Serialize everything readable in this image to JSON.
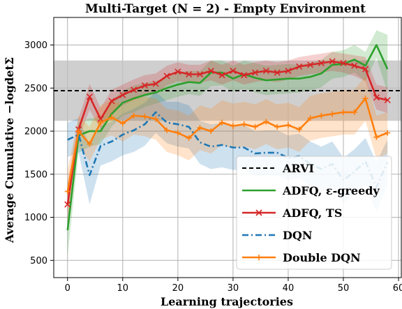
{
  "chart_data": {
    "type": "line",
    "title": "Multi-Target (N = 2) - Empty Environment",
    "xlabel": "Learning trajectories",
    "ylabel": "Average Cumulative −logdetΣ",
    "xlim": [
      -2.5,
      60.5
    ],
    "ylim": [
      300,
      3320
    ],
    "xticks": [
      "0",
      "10",
      "20",
      "30",
      "40",
      "50",
      "60"
    ],
    "yticks": [
      "500",
      "1000",
      "1500",
      "2000",
      "2500",
      "3000"
    ],
    "grid": true,
    "legend_position": "lower-right",
    "reference": {
      "name": "ARVI",
      "value": 2470,
      "band": [
        2120,
        2820
      ],
      "color": "#000000",
      "band_color": "#bfbfbf"
    },
    "series": [
      {
        "name": "ADFQ, ε-greedy",
        "color": "#2ca02c",
        "style": "solid",
        "marker": "none",
        "x": [
          0,
          2,
          4,
          6,
          8,
          10,
          12,
          14,
          16,
          18,
          20,
          22,
          24,
          26,
          28,
          30,
          32,
          34,
          36,
          38,
          40,
          42,
          44,
          46,
          48,
          50,
          52,
          54,
          56,
          58
        ],
        "y": [
          850,
          1950,
          2000,
          2000,
          2200,
          2330,
          2380,
          2420,
          2450,
          2500,
          2540,
          2570,
          2560,
          2680,
          2680,
          2610,
          2660,
          2620,
          2590,
          2600,
          2610,
          2610,
          2630,
          2670,
          2770,
          2780,
          2830,
          2760,
          3000,
          2720
        ],
        "lower": [
          550,
          1750,
          1820,
          1850,
          2050,
          2180,
          2220,
          2280,
          2320,
          2360,
          2400,
          2430,
          2410,
          2520,
          2530,
          2460,
          2490,
          2450,
          2420,
          2430,
          2440,
          2450,
          2470,
          2510,
          2610,
          2630,
          2680,
          2580,
          2850,
          2450
        ],
        "upper": [
          1150,
          2100,
          2150,
          2150,
          2350,
          2470,
          2530,
          2560,
          2580,
          2620,
          2680,
          2700,
          2700,
          2820,
          2820,
          2760,
          2820,
          2790,
          2760,
          2770,
          2780,
          2770,
          2790,
          2830,
          2920,
          2940,
          3000,
          2920,
          3170,
          3120
        ]
      },
      {
        "name": "ADFQ, TS",
        "color": "#d62728",
        "style": "solid",
        "marker": "x",
        "x": [
          0,
          2,
          4,
          6,
          8,
          10,
          12,
          14,
          16,
          18,
          20,
          22,
          24,
          26,
          28,
          30,
          32,
          34,
          36,
          38,
          40,
          42,
          44,
          46,
          48,
          50,
          52,
          54,
          56,
          58
        ],
        "y": [
          1150,
          2020,
          2400,
          2140,
          2350,
          2420,
          2480,
          2530,
          2550,
          2640,
          2690,
          2660,
          2660,
          2700,
          2650,
          2700,
          2650,
          2680,
          2700,
          2680,
          2700,
          2750,
          2770,
          2790,
          2810,
          2790,
          2760,
          2720,
          2390,
          2360
        ],
        "lower": [
          900,
          1900,
          2250,
          2020,
          2220,
          2300,
          2360,
          2410,
          2430,
          2530,
          2580,
          2560,
          2560,
          2590,
          2540,
          2590,
          2540,
          2570,
          2590,
          2570,
          2600,
          2640,
          2660,
          2680,
          2700,
          2680,
          2640,
          2580,
          2250,
          2210
        ],
        "upper": [
          1400,
          2150,
          2550,
          2270,
          2480,
          2540,
          2600,
          2650,
          2670,
          2760,
          2800,
          2770,
          2770,
          2820,
          2770,
          2820,
          2770,
          2800,
          2820,
          2800,
          2820,
          2860,
          2880,
          2900,
          2920,
          2900,
          2880,
          2860,
          2540,
          2510
        ]
      },
      {
        "name": "DQN",
        "color": "#1f77b4",
        "style": "dashdot",
        "marker": "none",
        "x": [
          0,
          2,
          4,
          6,
          8,
          10,
          12,
          14,
          16,
          18,
          20,
          22,
          24,
          26,
          28,
          30,
          32,
          34,
          36,
          38,
          40,
          42,
          44,
          46,
          48,
          50,
          52,
          54,
          56,
          58
        ],
        "y": [
          1900,
          1960,
          1490,
          1830,
          1880,
          1960,
          2010,
          2080,
          2220,
          2100,
          2080,
          2050,
          1870,
          1820,
          1840,
          1810,
          1810,
          1740,
          1750,
          1750,
          1690,
          1710,
          1620,
          1560,
          1620,
          1430,
          1530,
          1650,
          1350,
          1640
        ],
        "lower": [
          1700,
          1750,
          1150,
          1600,
          1650,
          1720,
          1760,
          1830,
          1980,
          1860,
          1820,
          1800,
          1620,
          1560,
          1580,
          1550,
          1550,
          1480,
          1490,
          1490,
          1430,
          1450,
          1360,
          1300,
          1360,
          1170,
          1270,
          1380,
          1060,
          1380
        ],
        "upper": [
          2100,
          2150,
          1830,
          2060,
          2110,
          2200,
          2260,
          2330,
          2460,
          2340,
          2340,
          2300,
          2120,
          2080,
          2100,
          2070,
          2070,
          2000,
          2010,
          2010,
          1950,
          1970,
          1880,
          1820,
          1880,
          1690,
          1790,
          1920,
          1640,
          1900
        ]
      },
      {
        "name": "Double DQN",
        "color": "#ff7f0e",
        "style": "solid",
        "marker": "+",
        "x": [
          0,
          2,
          4,
          6,
          8,
          10,
          12,
          14,
          16,
          18,
          20,
          22,
          24,
          26,
          28,
          30,
          32,
          34,
          36,
          38,
          40,
          42,
          44,
          46,
          48,
          50,
          52,
          54,
          56,
          58
        ],
        "y": [
          1300,
          2000,
          1850,
          2100,
          2160,
          2090,
          2180,
          2170,
          2140,
          2010,
          1980,
          1920,
          2040,
          2000,
          2100,
          2060,
          2080,
          2050,
          2110,
          2050,
          2070,
          2020,
          2150,
          2180,
          2200,
          2220,
          2220,
          2380,
          1930,
          1980
        ],
        "lower": [
          1050,
          1820,
          1650,
          1900,
          1950,
          1880,
          1960,
          1940,
          1900,
          1760,
          1720,
          1660,
          1780,
          1740,
          1840,
          1800,
          1820,
          1790,
          1850,
          1790,
          1810,
          1760,
          1890,
          1920,
          1940,
          1960,
          1960,
          2120,
          1680,
          1740
        ],
        "upper": [
          1550,
          2180,
          2050,
          2300,
          2370,
          2300,
          2400,
          2400,
          2380,
          2260,
          2240,
          2180,
          2300,
          2260,
          2360,
          2320,
          2340,
          2310,
          2370,
          2310,
          2330,
          2280,
          2410,
          2440,
          2460,
          2480,
          2480,
          2640,
          2180,
          2220
        ]
      }
    ]
  }
}
